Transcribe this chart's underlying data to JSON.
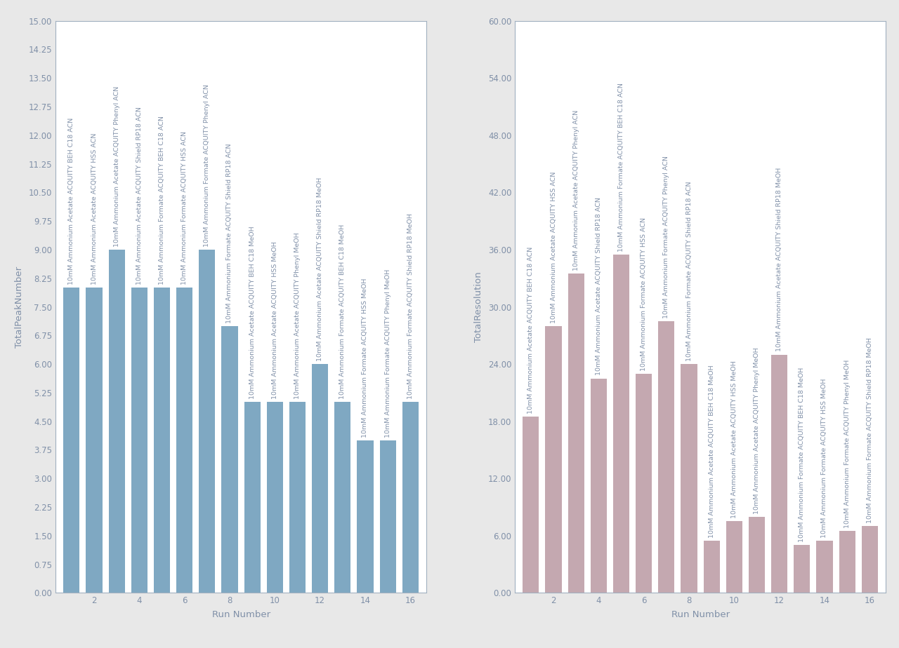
{
  "left_chart": {
    "xlabel": "Run Number",
    "ylabel": "TotalPeakNumber",
    "bar_color": "#7fa8c2",
    "ylim": [
      0,
      15.0
    ],
    "yticks": [
      0.0,
      0.75,
      1.5,
      2.25,
      3.0,
      3.75,
      4.5,
      5.25,
      6.0,
      6.75,
      7.5,
      8.25,
      9.0,
      9.75,
      10.5,
      11.25,
      12.0,
      12.75,
      13.5,
      14.25,
      15.0
    ],
    "values": [
      8,
      8,
      9,
      8,
      8,
      8,
      9,
      7,
      5,
      5,
      5,
      6,
      5,
      4,
      4,
      5
    ],
    "run_numbers": [
      1,
      2,
      3,
      4,
      5,
      6,
      7,
      8,
      9,
      10,
      11,
      12,
      13,
      14,
      15,
      16
    ],
    "labels": [
      "10mM Ammonium Acetate ACQUITY BEH C18 ACN",
      "10mM Ammonium Acetate ACQUITY HSS ACN",
      "10mM Ammonium Acetate ACQUITY Phenyl ACN",
      "10mM Ammonium Acetate ACQUITY Shield RP18 ACN",
      "10mM Ammonium Formate ACQUITY BEH C18 ACN",
      "10mM Ammonium Formate ACQUITY HSS ACN",
      "10mM Ammonium Formate ACQUITY Phenyl ACN",
      "10mM Ammonium Formate ACQUITY Shield RP18 ACN",
      "10mM Ammonium Acetate ACQUITY BEH C18 MeOH",
      "10mM Ammonium Acetate ACQUITY HSS MeOH",
      "10mM Ammonium Acetate ACQUITY Phenyl MeOH",
      "10mM Ammonium Acetate ACQUITY Shield RP18 MeOH",
      "10mM Ammonium Formate ACQUITY BEH C18 MeOH",
      "10mM Ammonium Formate ACQUITY HSS MeOH",
      "10mM Ammonium Formate ACQUITY Phenyl MeOH",
      "10mM Ammonium Formate ACQUITY Shield RP18 MeOH"
    ]
  },
  "right_chart": {
    "xlabel": "Run Number",
    "ylabel": "TotalResolution",
    "bar_color": "#c4a8b0",
    "ylim": [
      0,
      60.0
    ],
    "yticks": [
      0.0,
      6.0,
      12.0,
      18.0,
      24.0,
      30.0,
      36.0,
      42.0,
      48.0,
      54.0,
      60.0
    ],
    "values": [
      18.5,
      28.0,
      33.5,
      22.5,
      35.5,
      23.0,
      28.5,
      24.0,
      5.5,
      7.5,
      8.0,
      25.0,
      5.0,
      5.5,
      6.5,
      7.0
    ],
    "run_numbers": [
      1,
      2,
      3,
      4,
      5,
      6,
      7,
      8,
      9,
      10,
      11,
      12,
      13,
      14,
      15,
      16
    ],
    "labels": [
      "10mM Ammonium Acetate ACQUITY BEH C18 ACN",
      "10mM Ammonium Acetate ACQUITY HSS ACN",
      "10mM Ammonium Acetate ACQUITY Phenyl ACN",
      "10mM Ammonium Acetate ACQUITY Shield RP18 ACN",
      "10mM Ammonium Formate ACQUITY BEH C18 ACN",
      "10mM Ammonium Formate ACQUITY HSS ACN",
      "10mM Ammonium Formate ACQUITY Phenyl ACN",
      "10mM Ammonium Formate ACQUITY Shield RP18 ACN",
      "10mM Ammonium Acetate ACQUITY BEH C18 MeOH",
      "10mM Ammonium Acetate ACQUITY HSS MeOH",
      "10mM Ammonium Acetate ACQUITY Phenyl MeOH",
      "10mM Ammonium Acetate ACQUITY Shield RP18 MeOH",
      "10mM Ammonium Formate ACQUITY BEH C18 MeOH",
      "10mM Ammonium Formate ACQUITY HSS MeOH",
      "10mM Ammonium Formate ACQUITY Phenyl MeOH",
      "10mM Ammonium Formate ACQUITY Shield RP18 MeOH"
    ]
  },
  "fig_background": "#e8e8e8",
  "plot_background": "#ffffff",
  "spine_color": "#a0b0c0",
  "tick_color": "#8090a8",
  "label_color": "#8090a8",
  "bar_label_color": "#8090a8",
  "text_fontsize": 6.8,
  "axis_label_fontsize": 9.5,
  "tick_fontsize": 8.5
}
